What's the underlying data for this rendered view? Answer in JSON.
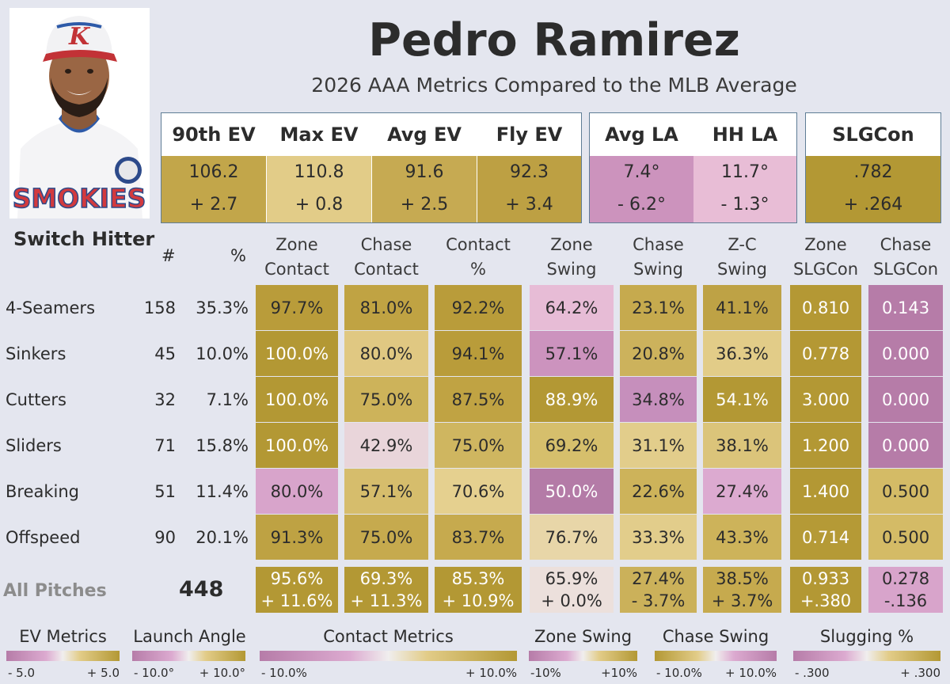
{
  "player": {
    "name": "Pedro Ramirez",
    "subtitle": "2026 AAA Metrics Compared to the MLB Average",
    "batter_type": "Switch Hitter"
  },
  "photo": {
    "cap_letter": "K",
    "jersey_text": "SMOKIES"
  },
  "header_metrics": [
    {
      "label": "90th EV",
      "value": "106.2",
      "diff": "+ 2.7",
      "color": "#c2a64a"
    },
    {
      "label": "Max EV",
      "value": "110.8",
      "diff": "+ 0.8",
      "color": "#e2cc88"
    },
    {
      "label": "Avg EV",
      "value": "91.6",
      "diff": "+ 2.5",
      "color": "#c6aa52"
    },
    {
      "label": "Fly EV",
      "value": "92.3",
      "diff": "+ 3.4",
      "color": "#bda043"
    },
    {
      "label": "Avg LA",
      "value": "7.4°",
      "diff": "- 6.2°",
      "color": "#cc93bd"
    },
    {
      "label": "HH LA",
      "value": "11.7°",
      "diff": "- 1.3°",
      "color": "#e8bdd6"
    },
    {
      "label": "SLGCon",
      "value": ".782",
      "diff": "+ .264",
      "color": "#b39834"
    }
  ],
  "table": {
    "count_header": "#",
    "pct_header": "%",
    "columns": [
      {
        "line1": "Zone",
        "line2": "Contact"
      },
      {
        "line1": "Chase",
        "line2": "Contact"
      },
      {
        "line1": "Contact",
        "line2": "%"
      },
      {
        "line1": "Zone",
        "line2": "Swing"
      },
      {
        "line1": "Chase",
        "line2": "Swing"
      },
      {
        "line1": "Z-C",
        "line2": "Swing"
      },
      {
        "line1": "Zone",
        "line2": "SLGCon"
      },
      {
        "line1": "Chase",
        "line2": "SLGCon"
      }
    ],
    "rows": [
      {
        "pitch": "4-Seamers",
        "count": "158",
        "pct": "35.3%",
        "values": [
          "97.7%",
          "81.0%",
          "92.2%",
          "64.2%",
          "23.1%",
          "41.1%",
          "0.810",
          "0.143"
        ],
        "colors": [
          "#b99c3a",
          "#c0a343",
          "#b99c3a",
          "#e7bcd6",
          "#c6aa4e",
          "#bea245",
          "#b49834",
          "#b67ca8"
        ]
      },
      {
        "pitch": "Sinkers",
        "count": "45",
        "pct": "10.0%",
        "values": [
          "100.0%",
          "80.0%",
          "94.1%",
          "57.1%",
          "20.8%",
          "36.3%",
          "0.778",
          "0.000"
        ],
        "colors": [
          "#b39834",
          "#e0c882",
          "#b99c3a",
          "#cc93be",
          "#ccb25c",
          "#e2cc88",
          "#b49834",
          "#b67ca8"
        ]
      },
      {
        "pitch": "Cutters",
        "count": "32",
        "pct": "7.1%",
        "values": [
          "100.0%",
          "75.0%",
          "87.5%",
          "88.9%",
          "34.8%",
          "54.1%",
          "3.000",
          "0.000"
        ],
        "colors": [
          "#b39834",
          "#cdb35a",
          "#c0a343",
          "#b39834",
          "#c68fbc",
          "#b39834",
          "#b39834",
          "#b67ca8"
        ]
      },
      {
        "pitch": "Sliders",
        "count": "71",
        "pct": "15.8%",
        "values": [
          "100.0%",
          "42.9%",
          "75.0%",
          "69.2%",
          "31.1%",
          "38.1%",
          "1.200",
          "0.000"
        ],
        "colors": [
          "#b39834",
          "#e9d5da",
          "#cfb660",
          "#d6bf6c",
          "#e2cd8b",
          "#dbc47a",
          "#b39834",
          "#b67ca8"
        ]
      },
      {
        "pitch": "Breaking",
        "count": "51",
        "pct": "11.4%",
        "values": [
          "80.0%",
          "57.1%",
          "70.6%",
          "50.0%",
          "22.6%",
          "27.4%",
          "1.400",
          "0.500"
        ],
        "colors": [
          "#d8a4cb",
          "#d6bd6c",
          "#e5d08f",
          "#b47ba7",
          "#cdb35a",
          "#dcaad0",
          "#b39834",
          "#d4bb66"
        ]
      },
      {
        "pitch": "Offspeed",
        "count": "90",
        "pct": "20.1%",
        "values": [
          "91.3%",
          "75.0%",
          "83.7%",
          "76.7%",
          "33.3%",
          "43.3%",
          "0.714",
          "0.500"
        ],
        "colors": [
          "#bea243",
          "#c6aa4e",
          "#c6aa4e",
          "#e8d6a8",
          "#e2cd8b",
          "#cdb35a",
          "#b59a36",
          "#d4bb66"
        ]
      }
    ],
    "all": {
      "label": "All Pitches",
      "count": "448",
      "values": [
        "95.6%",
        "69.3%",
        "85.3%",
        "65.9%",
        "27.4%",
        "38.5%",
        "0.933",
        "0.278"
      ],
      "diffs": [
        "+ 11.6%",
        "+ 11.3%",
        "+ 10.9%",
        "+ 0.0%",
        "- 3.7%",
        "+ 3.7%",
        "+.380",
        "-.136"
      ],
      "colors": [
        "#b39834",
        "#b39834",
        "#b39834",
        "#ece0dc",
        "#cbb15a",
        "#c6aa4e",
        "#b39834",
        "#d8a4cb"
      ]
    }
  },
  "legends": [
    {
      "title": "EV Metrics",
      "min": "- 5.0",
      "max": "+ 5.0",
      "gradient": "pink-to-gold"
    },
    {
      "title": "Launch Angle",
      "min": "- 10.0°",
      "max": "+ 10.0°",
      "gradient": "pink-to-gold"
    },
    {
      "title": "Contact Metrics",
      "min": "- 10.0%",
      "max": "+ 10.0%",
      "gradient": "pink-to-gold"
    },
    {
      "title": "Zone Swing",
      "min": "-10%",
      "max": "+10%",
      "gradient": "pink-to-gold"
    },
    {
      "title": "Chase Swing",
      "min": "- 10.0%",
      "max": "+ 10.0%",
      "gradient": "gold-to-pink"
    },
    {
      "title": "Slugging %",
      "min": "- .300",
      "max": "+ .300",
      "gradient": "pink-to-gold"
    }
  ],
  "colors": {
    "background": "#e4e6ef",
    "gold_strong": "#b39834",
    "pink_strong": "#b67ca8",
    "box_border": "#5f7d96"
  }
}
